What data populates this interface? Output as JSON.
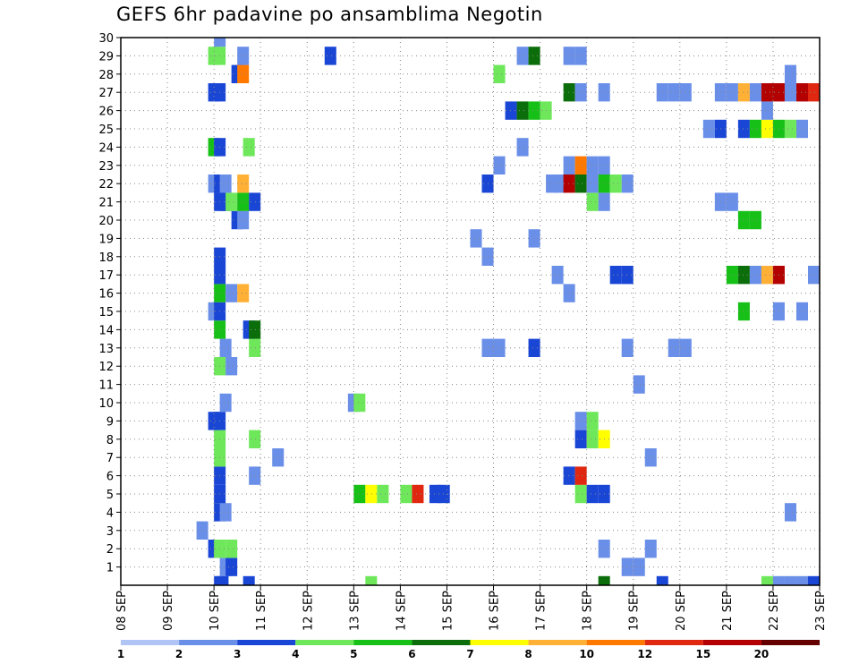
{
  "chart_data": {
    "type": "heatmap",
    "title": "GEFS 6hr padavine po ansamblima Negotin",
    "xlabel": "",
    "ylabel": "",
    "x_tick_labels": [
      "08 SEP",
      "09 SEP",
      "10 SEP",
      "11 SEP",
      "12 SEP",
      "13 SEP",
      "14 SEP",
      "15 SEP",
      "16 SEP",
      "17 SEP",
      "18 SEP",
      "19 SEP",
      "20 SEP",
      "21 SEP",
      "22 SEP",
      "23 SEP"
    ],
    "y_tick_labels": [
      "1",
      "2",
      "3",
      "4",
      "5",
      "6",
      "7",
      "8",
      "9",
      "10",
      "11",
      "12",
      "13",
      "14",
      "15",
      "16",
      "17",
      "18",
      "19",
      "20",
      "21",
      "22",
      "23",
      "24",
      "25",
      "26",
      "27",
      "28",
      "29",
      "30"
    ],
    "xlim_days": [
      0,
      15
    ],
    "ylim_members": [
      0,
      30
    ],
    "time_step_hours": 6,
    "grid": true,
    "colorbar": {
      "labels": [
        "1",
        "2",
        "3",
        "4",
        "5",
        "6",
        "7",
        "8",
        "10",
        "12",
        "15",
        "20"
      ],
      "colors": [
        "#b0c4f6",
        "#6a8fe8",
        "#1a46d6",
        "#6ee85a",
        "#16c016",
        "#0b6e0b",
        "#ffff00",
        "#ffb035",
        "#ff7800",
        "#e02810",
        "#b30000",
        "#640000"
      ]
    },
    "cells": [
      [
        0,
        8,
        2
      ],
      [
        0,
        8.25,
        2
      ],
      [
        0,
        10.5,
        2
      ],
      [
        0,
        21,
        3
      ],
      [
        0,
        41,
        5
      ],
      [
        0,
        46,
        2
      ],
      [
        0,
        55,
        3
      ],
      [
        0,
        56,
        1
      ],
      [
        0,
        57,
        1
      ],
      [
        0,
        58,
        1
      ],
      [
        0,
        59,
        2
      ],
      [
        0,
        62,
        1
      ],
      [
        0,
        63,
        3
      ],
      [
        0,
        68,
        5
      ],
      [
        0,
        69,
        2
      ],
      [
        0,
        71,
        1
      ],
      [
        0,
        72,
        3
      ],
      [
        0,
        73,
        11
      ],
      [
        0,
        74,
        1
      ],
      [
        1,
        8.5,
        1
      ],
      [
        1,
        9,
        2
      ],
      [
        1,
        43,
        1
      ],
      [
        1,
        44,
        1
      ],
      [
        2,
        7.5,
        2
      ],
      [
        2,
        8,
        3
      ],
      [
        2,
        9,
        3
      ],
      [
        2,
        41,
        1
      ],
      [
        2,
        45,
        1
      ],
      [
        2,
        64,
        1
      ],
      [
        2,
        65,
        1
      ],
      [
        3,
        6.5,
        1
      ],
      [
        3,
        60,
        3
      ],
      [
        4,
        8,
        2
      ],
      [
        4,
        8.5,
        1
      ],
      [
        4,
        57,
        1
      ],
      [
        5,
        8,
        2
      ],
      [
        5,
        20,
        4
      ],
      [
        5,
        21,
        6
      ],
      [
        5,
        22,
        3
      ],
      [
        5,
        24,
        3
      ],
      [
        5,
        25,
        9
      ],
      [
        5,
        26.5,
        2
      ],
      [
        5,
        27.25,
        2
      ],
      [
        5,
        39,
        3
      ],
      [
        5,
        40,
        2
      ],
      [
        5,
        41,
        2
      ],
      [
        5,
        72,
        1
      ],
      [
        6,
        8,
        2
      ],
      [
        6,
        11,
        1
      ],
      [
        6,
        38,
        2
      ],
      [
        6,
        39,
        9
      ],
      [
        7,
        8,
        3
      ],
      [
        7,
        13,
        1
      ],
      [
        7,
        45,
        1
      ],
      [
        7,
        60,
        1
      ],
      [
        8,
        8,
        3
      ],
      [
        8,
        11,
        3
      ],
      [
        8,
        39,
        2
      ],
      [
        8,
        40,
        3
      ],
      [
        8,
        41,
        6
      ],
      [
        9,
        7.5,
        2
      ],
      [
        9,
        8,
        2
      ],
      [
        9,
        39,
        1
      ],
      [
        9,
        40,
        3
      ],
      [
        10,
        8.5,
        1
      ],
      [
        10,
        19.5,
        1
      ],
      [
        10,
        20,
        3
      ],
      [
        10,
        60,
        1
      ],
      [
        11,
        44,
        1
      ],
      [
        11,
        60,
        2
      ],
      [
        12,
        8,
        3
      ],
      [
        12,
        9,
        1
      ],
      [
        13,
        8.5,
        1
      ],
      [
        13,
        11,
        3
      ],
      [
        13,
        31,
        1
      ],
      [
        13,
        32,
        1
      ],
      [
        13,
        35,
        2
      ],
      [
        13,
        43,
        1
      ],
      [
        13,
        47,
        1
      ],
      [
        13,
        48,
        1
      ],
      [
        14,
        8,
        4
      ],
      [
        14,
        10.5,
        2
      ],
      [
        14,
        11,
        5
      ],
      [
        15,
        7.5,
        1
      ],
      [
        15,
        8,
        2
      ],
      [
        15,
        53,
        4
      ],
      [
        15,
        56,
        1
      ],
      [
        15,
        58,
        1
      ],
      [
        15,
        60,
        1
      ],
      [
        16,
        8,
        4
      ],
      [
        16,
        9,
        1
      ],
      [
        16,
        10,
        7
      ],
      [
        16,
        38,
        1
      ],
      [
        17,
        8,
        2
      ],
      [
        17,
        37,
        1
      ],
      [
        17,
        42,
        2
      ],
      [
        17,
        43,
        2
      ],
      [
        17,
        52,
        4
      ],
      [
        17,
        53,
        5
      ],
      [
        17,
        54,
        1
      ],
      [
        17,
        55,
        7
      ],
      [
        17,
        56,
        10
      ],
      [
        17,
        59,
        1
      ],
      [
        18,
        8,
        2
      ],
      [
        18,
        31,
        1
      ],
      [
        19,
        30,
        1
      ],
      [
        19,
        35,
        1
      ],
      [
        20,
        9.5,
        2
      ],
      [
        20,
        10,
        1
      ],
      [
        20,
        53,
        4
      ],
      [
        20,
        54,
        4
      ],
      [
        21,
        8,
        2
      ],
      [
        21,
        8.5,
        2
      ],
      [
        21,
        9,
        3
      ],
      [
        21,
        10,
        4
      ],
      [
        21,
        11,
        2
      ],
      [
        21,
        40,
        3
      ],
      [
        21,
        41,
        1
      ],
      [
        21,
        51,
        1
      ],
      [
        21,
        52,
        1
      ],
      [
        22,
        7.5,
        1
      ],
      [
        22,
        8,
        2
      ],
      [
        22,
        8.5,
        1
      ],
      [
        22,
        10,
        7
      ],
      [
        22,
        31,
        2
      ],
      [
        22,
        36.5,
        1
      ],
      [
        22,
        37.25,
        1
      ],
      [
        22,
        38,
        10
      ],
      [
        22,
        39,
        5
      ],
      [
        22,
        40,
        1
      ],
      [
        22,
        41,
        4
      ],
      [
        22,
        42,
        3
      ],
      [
        22,
        43,
        1
      ],
      [
        23,
        32,
        1
      ],
      [
        23,
        38,
        1
      ],
      [
        23,
        39,
        8
      ],
      [
        23,
        40,
        1
      ],
      [
        23,
        41,
        1
      ],
      [
        24,
        7.5,
        4
      ],
      [
        24,
        8,
        2
      ],
      [
        24,
        10.5,
        3
      ],
      [
        24,
        34,
        1
      ],
      [
        25,
        50,
        1
      ],
      [
        25,
        51,
        2
      ],
      [
        25,
        53,
        2
      ],
      [
        25,
        54,
        4
      ],
      [
        25,
        55,
        6
      ],
      [
        25,
        56,
        4
      ],
      [
        25,
        57,
        3
      ],
      [
        25,
        58,
        1
      ],
      [
        26,
        33,
        2
      ],
      [
        26,
        34,
        5
      ],
      [
        26,
        35,
        4
      ],
      [
        26,
        36,
        3
      ],
      [
        26,
        55,
        1
      ],
      [
        27,
        7.5,
        2
      ],
      [
        27,
        8,
        2
      ],
      [
        27,
        38,
        5
      ],
      [
        27,
        39,
        1
      ],
      [
        27,
        41,
        1
      ],
      [
        27,
        46,
        1
      ],
      [
        27,
        47,
        1
      ],
      [
        27,
        48,
        1
      ],
      [
        27,
        51,
        1
      ],
      [
        27,
        52,
        1
      ],
      [
        27,
        53,
        7
      ],
      [
        27,
        54,
        1
      ],
      [
        27,
        55,
        10
      ],
      [
        27,
        56,
        10
      ],
      [
        27,
        57,
        1
      ],
      [
        27,
        58,
        10
      ],
      [
        27,
        59,
        9
      ],
      [
        28,
        9.5,
        2
      ],
      [
        28,
        10,
        8
      ],
      [
        28,
        32,
        3
      ],
      [
        28,
        57,
        1
      ],
      [
        29,
        7.5,
        3
      ],
      [
        29,
        8,
        3
      ],
      [
        29,
        10,
        1
      ],
      [
        29,
        17.5,
        2
      ],
      [
        29,
        34,
        1
      ],
      [
        29,
        35,
        5
      ],
      [
        29,
        38,
        1
      ],
      [
        29,
        39,
        1
      ],
      [
        30,
        8,
        1
      ]
    ]
  }
}
